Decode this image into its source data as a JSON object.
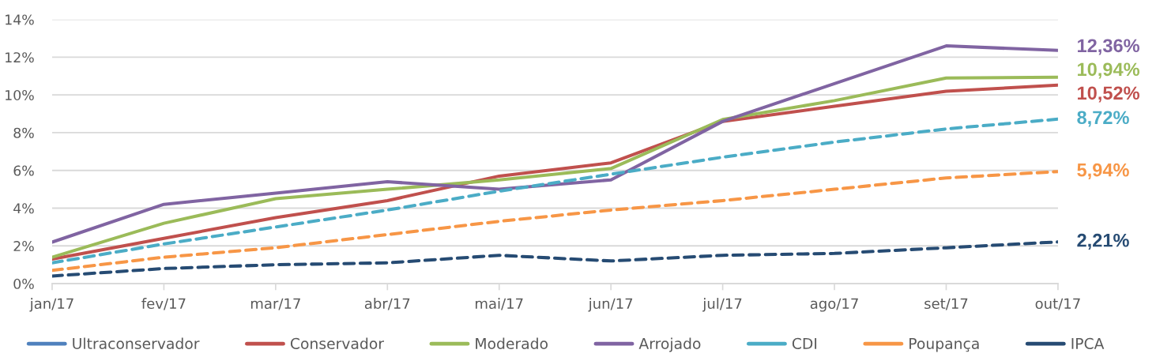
{
  "chart_data": {
    "type": "line",
    "categories": [
      "jan/17",
      "fev/17",
      "mar/17",
      "abr/17",
      "mai/17",
      "jun/17",
      "jul/17",
      "ago/17",
      "set/17",
      "out/17"
    ],
    "ylim": [
      0,
      14
    ],
    "yticks": [
      {
        "value": 0,
        "label": "0%"
      },
      {
        "value": 2,
        "label": "2%"
      },
      {
        "value": 4,
        "label": "4%"
      },
      {
        "value": 6,
        "label": "6%"
      },
      {
        "value": 8,
        "label": "8%"
      },
      {
        "value": 10,
        "label": "10%"
      },
      {
        "value": 12,
        "label": "12%"
      },
      {
        "value": 14,
        "label": "14%"
      }
    ],
    "grid": "y",
    "legend": "bottom",
    "series": [
      {
        "name": "Ultraconservador",
        "color": "#4f81bd",
        "values": [
          null,
          null,
          null,
          null,
          null,
          null,
          null,
          null,
          null,
          null
        ]
      },
      {
        "name": "Conservador",
        "color": "#c0504d",
        "line_style": "solid",
        "values": [
          1.3,
          2.4,
          3.5,
          4.4,
          5.7,
          6.4,
          8.6,
          9.4,
          10.2,
          10.52
        ],
        "value_labels": [
          null,
          null,
          null,
          null,
          null,
          null,
          null,
          null,
          null,
          "10,52%"
        ]
      },
      {
        "name": "Moderado",
        "color": "#9bbb59",
        "line_style": "solid",
        "values": [
          1.4,
          3.2,
          4.5,
          5.0,
          5.5,
          6.1,
          8.7,
          9.7,
          10.9,
          10.94
        ],
        "value_labels": [
          null,
          null,
          null,
          null,
          null,
          null,
          null,
          null,
          null,
          "10,94%"
        ]
      },
      {
        "name": "Arrojado",
        "color": "#8064a2",
        "line_style": "solid",
        "values": [
          2.2,
          4.2,
          4.8,
          5.4,
          5.0,
          5.5,
          8.6,
          10.6,
          12.6,
          12.36
        ],
        "value_labels": [
          null,
          null,
          null,
          null,
          null,
          null,
          null,
          null,
          null,
          "12,36%"
        ]
      },
      {
        "name": "CDI",
        "color": "#4bacc6",
        "line_style": "dashed",
        "values": [
          1.1,
          2.1,
          3.0,
          3.9,
          4.9,
          5.8,
          6.7,
          7.5,
          8.2,
          8.72
        ],
        "value_labels": [
          null,
          null,
          null,
          null,
          null,
          null,
          null,
          null,
          null,
          "8,72%"
        ]
      },
      {
        "name": "Poupança",
        "color": "#f79646",
        "line_style": "dashed",
        "values": [
          0.7,
          1.4,
          1.9,
          2.6,
          3.3,
          3.9,
          4.4,
          5.0,
          5.6,
          5.94
        ],
        "value_labels": [
          null,
          null,
          null,
          null,
          null,
          null,
          null,
          null,
          null,
          "5,94%"
        ]
      },
      {
        "name": "IPCA",
        "color": "#264b73",
        "line_style": "dashed",
        "values": [
          0.4,
          0.8,
          1.0,
          1.1,
          1.5,
          1.2,
          1.5,
          1.6,
          1.9,
          2.21
        ],
        "value_labels": [
          null,
          null,
          null,
          null,
          null,
          null,
          null,
          null,
          null,
          "2,21%"
        ]
      }
    ]
  }
}
